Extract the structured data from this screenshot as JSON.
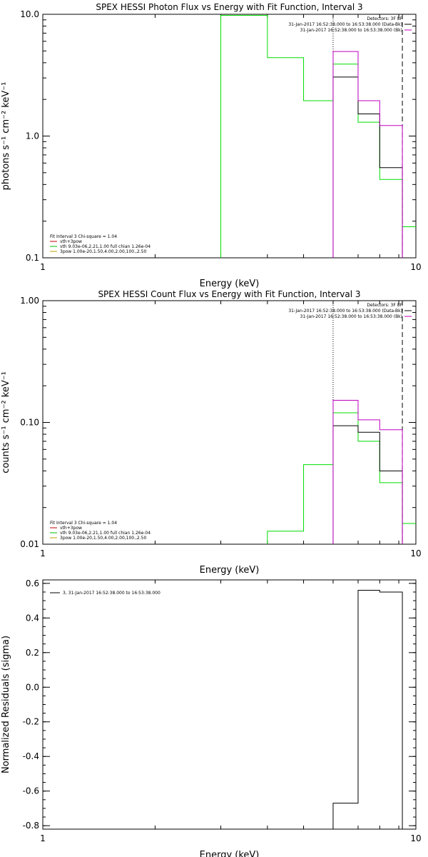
{
  "chart_data": [
    {
      "type": "line",
      "title": "SPEX HESSI Photon Flux vs Energy with Fit Function, Interval 3",
      "xlabel": "Energy (keV)",
      "ylabel": "photons s⁻¹ cm⁻² keV⁻¹",
      "xscale": "log",
      "yscale": "log",
      "xlim": [
        1,
        10
      ],
      "ylim": [
        0.1,
        10
      ],
      "x_ticks": [
        {
          "value": 1,
          "label": "1"
        },
        {
          "value": 10,
          "label": "10"
        }
      ],
      "y_ticks": [
        {
          "value": 0.1,
          "label": "0.1"
        },
        {
          "value": 1,
          "label": "1.0"
        },
        {
          "value": 10,
          "label": "10.0"
        }
      ],
      "vlines": [
        {
          "x": 6,
          "style": "dotted"
        },
        {
          "x": 9.2,
          "style": "dashed"
        }
      ],
      "legend_top": {
        "placement": "top-right",
        "entries": [
          {
            "text": "Detectors: 3F 8F",
            "color": ""
          },
          {
            "text": "31-Jan-2017 16:52:38.000 to 16:53:38.000 (Data-Bk)",
            "color": "#000000"
          },
          {
            "text": "31-Jan-2017 16:52:38.000 to 16:53:38.000 (Bk)",
            "color": "#c000c0"
          }
        ]
      },
      "legend_bottom": {
        "placement": "bottom-left",
        "entries": [
          {
            "text": "Fit Interval 3   Chi-square = 1.04",
            "color": ""
          },
          {
            "text": "vth+3pow",
            "color": "#c00000"
          },
          {
            "text": "vth 9.03e-06,2.21,1.00  full chian 1.26e-04",
            "color": "#00c000"
          },
          {
            "text": "3pow 1.00e-20,1.50,4.00,2.00,100.,2.50",
            "color": "#c0a000"
          }
        ]
      },
      "series": [
        {
          "color": "#00dd00",
          "edges": [
            3,
            4,
            5,
            6,
            7,
            8,
            9.2,
            10.5
          ],
          "values": [
            9.8,
            4.4,
            1.95,
            3.9,
            1.3,
            0.44,
            0.18
          ]
        },
        {
          "color": "#000000",
          "edges": [
            6,
            7,
            8,
            9.2
          ],
          "values": [
            3.05,
            1.52,
            0.55
          ]
        },
        {
          "color": "#c000c0",
          "edges": [
            6,
            7,
            8,
            9.2
          ],
          "values": [
            4.95,
            1.95,
            1.22
          ]
        }
      ]
    },
    {
      "type": "line",
      "title": "SPEX HESSI Count Flux vs Energy with Fit Function, Interval 3",
      "xlabel": "Energy (keV)",
      "ylabel": "counts s⁻¹ cm⁻² keV⁻¹",
      "xscale": "log",
      "yscale": "log",
      "xlim": [
        1,
        10
      ],
      "ylim": [
        0.01,
        1
      ],
      "x_ticks": [
        {
          "value": 1,
          "label": "1"
        },
        {
          "value": 10,
          "label": "10"
        }
      ],
      "y_ticks": [
        {
          "value": 0.01,
          "label": "0.01"
        },
        {
          "value": 0.1,
          "label": "0.10"
        },
        {
          "value": 1,
          "label": "1.00"
        }
      ],
      "vlines": [
        {
          "x": 6,
          "style": "dotted"
        },
        {
          "x": 9.2,
          "style": "dashed"
        }
      ],
      "legend_top": {
        "placement": "top-right",
        "entries": [
          {
            "text": "Detectors: 3F 8F",
            "color": ""
          },
          {
            "text": "31-Jan-2017 16:52:38.000 to 16:53:38.000 (Data-Bk)",
            "color": "#000000"
          },
          {
            "text": "31-Jan-2017 16:52:38.000 to 16:53:38.000 (Bk)",
            "color": "#c000c0"
          }
        ]
      },
      "legend_bottom": {
        "placement": "bottom-left",
        "entries": [
          {
            "text": "Fit Interval 3   Chi-square = 1.04",
            "color": ""
          },
          {
            "text": "vth+3pow",
            "color": "#c00000"
          },
          {
            "text": "vth 9.03e-06,2.21,1.00  full chian 1.26e-04",
            "color": "#00c000"
          },
          {
            "text": "3pow 1.00e-20,1.50,4.00,2.00,100.,2.50",
            "color": "#c0a000"
          }
        ]
      },
      "series": [
        {
          "color": "#00dd00",
          "edges": [
            4,
            5,
            6,
            7,
            8,
            9.2,
            10.5
          ],
          "values": [
            0.0128,
            0.045,
            0.12,
            0.07,
            0.032,
            0.0148
          ]
        },
        {
          "color": "#000000",
          "edges": [
            6,
            7,
            8,
            9.2
          ],
          "values": [
            0.094,
            0.083,
            0.04
          ]
        },
        {
          "color": "#c000c0",
          "edges": [
            6,
            7,
            8,
            9.2
          ],
          "values": [
            0.152,
            0.105,
            0.087
          ]
        }
      ]
    },
    {
      "type": "line",
      "title": "",
      "xlabel": "Energy (keV)",
      "ylabel": "Normalized Residuals (sigma)",
      "xscale": "log",
      "yscale": "linear",
      "xlim": [
        1,
        10
      ],
      "ylim": [
        -0.82,
        0.62
      ],
      "x_ticks": [
        {
          "value": 1,
          "label": "1"
        },
        {
          "value": 10,
          "label": "10"
        }
      ],
      "y_ticks": [
        {
          "value": 0.6,
          "label": "0.6"
        },
        {
          "value": 0.4,
          "label": "0.4"
        },
        {
          "value": 0.2,
          "label": "0.2"
        },
        {
          "value": 0,
          "label": "0.0"
        },
        {
          "value": -0.2,
          "label": "-0.2"
        },
        {
          "value": -0.4,
          "label": "-0.4"
        },
        {
          "value": -0.6,
          "label": "-0.6"
        },
        {
          "value": -0.8,
          "label": "-0.8"
        }
      ],
      "vlines": [],
      "legend_top": {
        "placement": "top-left",
        "entries": [
          {
            "text": "3, 31-Jan-2017 16:52:38.000 to 16:53:38.000",
            "color": "#000000"
          }
        ]
      },
      "legend_bottom": {
        "placement": "bottom-left",
        "entries": []
      },
      "series": [
        {
          "color": "#000000",
          "edges": [
            6,
            7,
            8,
            9.2
          ],
          "values": [
            -0.67,
            0.56,
            0.55
          ]
        }
      ]
    }
  ]
}
